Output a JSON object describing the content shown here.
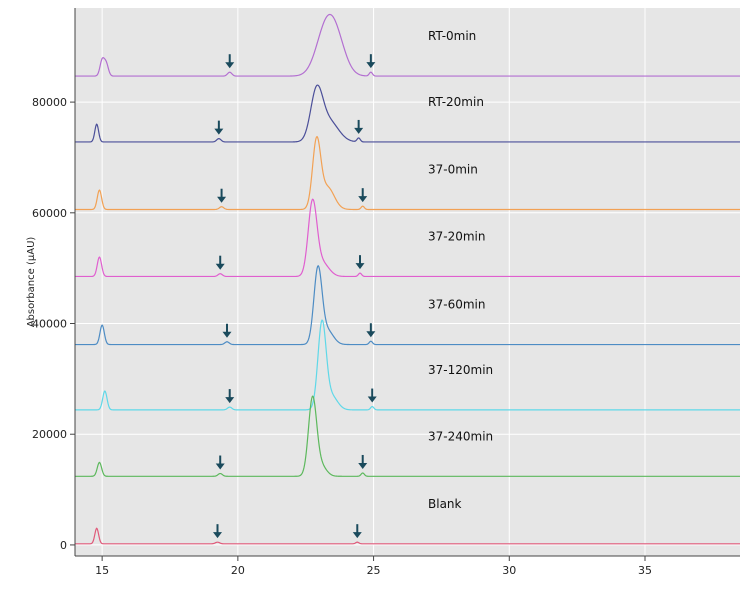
{
  "chart_data": {
    "type": "line",
    "title": "",
    "xlabel": "",
    "ylabel": "Absorbance (µAU)",
    "xlim": [
      14,
      38.5
    ],
    "ylim": [
      -2000,
      97000
    ],
    "xticks": [
      15,
      20,
      25,
      30,
      35
    ],
    "yticks": [
      0,
      20000,
      40000,
      60000,
      80000
    ],
    "grid": true,
    "legend": "inline labels",
    "colors": {
      "plot_bg": "#e6e6e6",
      "gridline": "#ffffff",
      "arrow": "#1a4a5c"
    },
    "series": [
      {
        "name": "RT-0min",
        "color": "#b36fd1",
        "baseline": 84700,
        "peaks": [
          {
            "x": 15.0,
            "height": 2800,
            "width": 0.08
          },
          {
            "x": 15.15,
            "height": 2200,
            "width": 0.08
          },
          {
            "x": 19.7,
            "height": 700,
            "width": 0.08
          },
          {
            "x": 23.2,
            "height": 6800,
            "width": 0.35
          },
          {
            "x": 23.6,
            "height": 6300,
            "width": 0.35
          },
          {
            "x": 24.9,
            "height": 700,
            "width": 0.06
          }
        ],
        "arrows": [
          19.7,
          24.9
        ]
      },
      {
        "name": "RT-20min",
        "color": "#4b4f99",
        "baseline": 72800,
        "peaks": [
          {
            "x": 14.8,
            "height": 3200,
            "width": 0.07
          },
          {
            "x": 19.3,
            "height": 600,
            "width": 0.08
          },
          {
            "x": 22.9,
            "height": 8500,
            "width": 0.22
          },
          {
            "x": 23.35,
            "height": 3800,
            "width": 0.35
          },
          {
            "x": 24.45,
            "height": 700,
            "width": 0.06
          }
        ],
        "arrows": [
          19.3,
          24.45
        ]
      },
      {
        "name": "37-0min",
        "color": "#f2a154",
        "baseline": 60600,
        "peaks": [
          {
            "x": 14.9,
            "height": 3500,
            "width": 0.08
          },
          {
            "x": 19.4,
            "height": 500,
            "width": 0.08
          },
          {
            "x": 22.9,
            "height": 12000,
            "width": 0.15
          },
          {
            "x": 23.3,
            "height": 4000,
            "width": 0.25
          },
          {
            "x": 24.6,
            "height": 600,
            "width": 0.06
          }
        ],
        "arrows": [
          19.4,
          24.6
        ]
      },
      {
        "name": "37-20min",
        "color": "#e05fcf",
        "baseline": 48500,
        "peaks": [
          {
            "x": 14.9,
            "height": 3500,
            "width": 0.08
          },
          {
            "x": 19.35,
            "height": 500,
            "width": 0.08
          },
          {
            "x": 22.75,
            "height": 13000,
            "width": 0.16
          },
          {
            "x": 23.1,
            "height": 2500,
            "width": 0.25
          },
          {
            "x": 24.5,
            "height": 600,
            "width": 0.06
          }
        ],
        "arrows": [
          19.35,
          24.5
        ]
      },
      {
        "name": "37-60min",
        "color": "#4d8cc4",
        "baseline": 36200,
        "peaks": [
          {
            "x": 15.0,
            "height": 3500,
            "width": 0.08
          },
          {
            "x": 19.6,
            "height": 500,
            "width": 0.08
          },
          {
            "x": 22.95,
            "height": 13500,
            "width": 0.15
          },
          {
            "x": 23.3,
            "height": 2500,
            "width": 0.22
          },
          {
            "x": 24.9,
            "height": 600,
            "width": 0.06
          }
        ],
        "arrows": [
          19.6,
          24.9
        ]
      },
      {
        "name": "37-120min",
        "color": "#5fd8e8",
        "baseline": 24400,
        "peaks": [
          {
            "x": 15.1,
            "height": 3400,
            "width": 0.08
          },
          {
            "x": 19.7,
            "height": 500,
            "width": 0.08
          },
          {
            "x": 23.1,
            "height": 15500,
            "width": 0.15
          },
          {
            "x": 23.45,
            "height": 2500,
            "width": 0.22
          },
          {
            "x": 24.95,
            "height": 600,
            "width": 0.06
          }
        ],
        "arrows": [
          19.7,
          24.95
        ]
      },
      {
        "name": "37-240min",
        "color": "#5cb85c",
        "baseline": 12400,
        "peaks": [
          {
            "x": 14.9,
            "height": 2500,
            "width": 0.08
          },
          {
            "x": 19.35,
            "height": 500,
            "width": 0.08
          },
          {
            "x": 22.75,
            "height": 13800,
            "width": 0.15
          },
          {
            "x": 23.05,
            "height": 2000,
            "width": 0.2
          },
          {
            "x": 24.6,
            "height": 600,
            "width": 0.06
          }
        ],
        "arrows": [
          19.35,
          24.6
        ]
      },
      {
        "name": "Blank",
        "color": "#e05a7a",
        "baseline": 200,
        "peaks": [
          {
            "x": 14.8,
            "height": 2800,
            "width": 0.07
          },
          {
            "x": 19.25,
            "height": 300,
            "width": 0.08
          },
          {
            "x": 24.4,
            "height": 300,
            "width": 0.06
          }
        ],
        "arrows": [
          19.25,
          24.4
        ]
      }
    ]
  }
}
